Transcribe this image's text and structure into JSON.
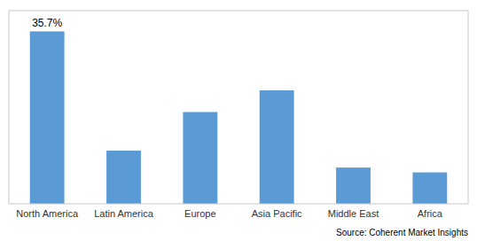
{
  "chart_data": {
    "type": "bar",
    "categories": [
      "North America",
      "Latin America",
      "Europe",
      "Asia Pacific",
      "Middle East",
      "Africa"
    ],
    "values": [
      35.7,
      11.0,
      19.0,
      23.5,
      7.5,
      6.5
    ],
    "color": "#5b9bd5",
    "ylim": [
      0,
      40
    ],
    "data_labels": true,
    "value_labels": [
      "35.7%",
      null,
      null,
      null,
      null,
      null
    ],
    "tick_labels": "x",
    "grid": false,
    "source": "Source: Coherent Market Insights"
  }
}
